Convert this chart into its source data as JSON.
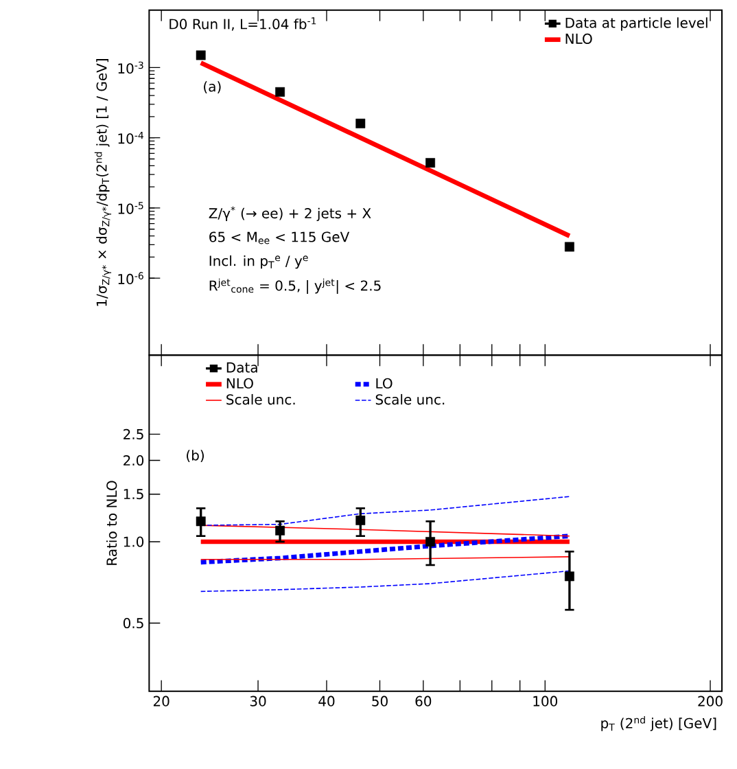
{
  "chart_data": [
    {
      "type": "scatter",
      "ylabel": "1/σ$_{Z/γ*}$ × dσ$_{Z/γ*}$/dp$_{T}$(2$^{nd}$ jet)  [1 / GeV]",
      "log": "xy",
      "legend": "top right",
      "tick_labels": "y",
      "xlim": [
        19.0,
        210
      ],
      "xticks": [
        {
          "value": 20,
          "label": null
        },
        {
          "value": 30,
          "label": null
        },
        {
          "value": 40,
          "label": null
        },
        {
          "value": 50,
          "label": null
        },
        {
          "value": 60,
          "label": null
        },
        {
          "value": 70,
          "label": null
        },
        {
          "value": 80,
          "label": null
        },
        {
          "value": 90,
          "label": null
        },
        {
          "value": 100,
          "label": null
        },
        {
          "value": 200,
          "label": null
        }
      ],
      "ylim": [
        8e-08,
        0.0066
      ],
      "yticks": [
        {
          "value": 1e-06,
          "label": "10$^{-6}$"
        },
        {
          "value": 1e-05,
          "label": "10$^{-5}$"
        },
        {
          "value": 0.0001,
          "label": "10$^{-4}$"
        },
        {
          "value": 0.001,
          "label": "10$^{-3}$"
        }
      ],
      "annotations": [
        "D0 Run II, L=1.04 fb$^{-1}$",
        "(a)",
        "Z/γ$^{*}$ (→ ee) + 2 jets + X",
        "65 < M$_{ee}$ < 115 GeV",
        "Incl. in p$_{T}$$^{e}$ / y$^{e}$",
        "R$^{jet}$$_{cone}$ = 0.5, | y$^{jet}$| < 2.5"
      ],
      "series": [
        {
          "name": "Data at particle level",
          "marker": "square",
          "color": "#000000",
          "x": [
            23.6,
            32.9,
            46.1,
            61.8,
            110.8
          ],
          "values": [
            0.0015,
            0.00045,
            0.00016,
            4.4e-05,
            2.8e-06
          ]
        },
        {
          "name": "NLO",
          "type": "line",
          "color": "#ff0000",
          "x": [
            23.6,
            110.8
          ],
          "values": [
            0.00117,
            4e-06
          ]
        }
      ]
    },
    {
      "type": "scatter",
      "xlabel": "p$_{T}$ (2$^{nd}$ jet)  [GeV]",
      "ylabel": "Ratio to NLO",
      "log": "xy",
      "legend": "top",
      "xlim": [
        19.0,
        210
      ],
      "xticks": [
        20,
        30,
        40,
        50,
        60,
        {
          "value": 70,
          "label": null
        },
        {
          "value": 80,
          "label": null
        },
        {
          "value": 90,
          "label": null
        },
        100,
        200
      ],
      "ylim": [
        0.28,
        4.9
      ],
      "yticks": [
        0.5,
        {
          "value": 1.0,
          "label": "1.0"
        },
        1.5,
        {
          "value": 2.0,
          "label": "2.0"
        },
        2.5
      ],
      "annotations": [
        "(b)"
      ],
      "series": [
        {
          "name": "Data",
          "marker": "square",
          "color": "#000000",
          "x": [
            23.6,
            32.9,
            46.1,
            61.8,
            110.8
          ],
          "values": [
            1.19,
            1.1,
            1.2,
            1.0,
            0.745
          ],
          "errors": [
            [
              1.05,
              1.33
            ],
            [
              1.0,
              1.19
            ],
            [
              1.05,
              1.33
            ],
            [
              0.82,
              1.19
            ],
            [
              0.56,
              0.92
            ]
          ]
        },
        {
          "name": "NLO",
          "type": "line",
          "color": "#ff0000",
          "x": [
            23.6,
            110.8
          ],
          "values": [
            1.0,
            1.0
          ]
        },
        {
          "name": "LO",
          "type": "line",
          "line_style": "dashed",
          "color": "#0000ff",
          "x": [
            23.6,
            32.9,
            46.1,
            61.8,
            110.8
          ],
          "values": [
            0.84,
            0.87,
            0.92,
            0.965,
            1.05
          ]
        },
        {
          "name": "Scale unc.",
          "type": "line",
          "color": "#ff0000",
          "x": [
            23.6,
            46.1,
            110.8
          ],
          "values": [
            1.15,
            1.11,
            1.05
          ]
        },
        {
          "name": "Scale unc.",
          "type": "line",
          "line_style": "dashed",
          "color": "#0000ff",
          "x": [
            23.6,
            32.9,
            46.1,
            61.8,
            110.8
          ],
          "values": [
            1.15,
            1.16,
            1.27,
            1.31,
            1.47
          ]
        },
        {
          "type": "line",
          "color": "#ff0000",
          "x": [
            23.6,
            46.1,
            110.8
          ],
          "values": [
            0.86,
            0.86,
            0.88
          ]
        },
        {
          "type": "line",
          "line_style": "dashed",
          "color": "#0000ff",
          "x": [
            23.6,
            32.9,
            46.1,
            61.8,
            110.8
          ],
          "values": [
            0.655,
            0.665,
            0.68,
            0.7,
            0.78
          ]
        }
      ]
    }
  ]
}
